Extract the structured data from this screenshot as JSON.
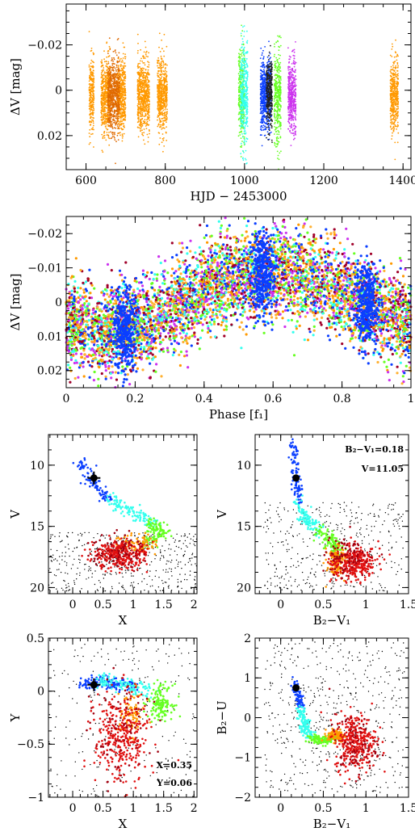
{
  "chart_data": [
    {
      "type": "scatter",
      "xlabel": "HJD − 2453000",
      "ylabel": "ΔV [mag]",
      "xlim": [
        550,
        1420
      ],
      "ylim": [
        0.035,
        -0.038
      ],
      "xticks": [
        600,
        800,
        1000,
        1200,
        1400
      ],
      "xtick_labels": [
        "600",
        "800",
        "1000",
        "1200",
        "1400"
      ],
      "yticks": [
        -0.02,
        0,
        0.02
      ],
      "ytick_labels": [
        "−0.02",
        "0",
        "0.02"
      ],
      "series": [
        {
          "color": "#ff9900",
          "segments": [
            [
              608,
              620
            ],
            [
              638,
              662
            ],
            [
              678,
              700
            ],
            [
              730,
              760
            ],
            [
              780,
              805
            ],
            [
              1368,
              1388
            ]
          ]
        },
        {
          "color": "#e06a00",
          "segments": [
            [
              655,
              685
            ]
          ]
        },
        {
          "color": "#66ff22",
          "segments": [
            [
              985,
              1000
            ],
            [
              1075,
              1092
            ]
          ]
        },
        {
          "color": "#33ffee",
          "segments": [
            [
              990,
              1008
            ]
          ]
        },
        {
          "color": "#0b3fff",
          "segments": [
            [
              1040,
              1068
            ]
          ]
        },
        {
          "color": "#cc33ee",
          "segments": [
            [
              1110,
              1130
            ]
          ]
        },
        {
          "color": "#222222",
          "segments": [
            [
              1055,
              1070
            ]
          ]
        }
      ]
    },
    {
      "type": "scatter",
      "xlabel": "Phase [f₁]",
      "ylabel": "ΔV [mag]",
      "xlim": [
        0,
        1
      ],
      "ylim": [
        0.025,
        -0.025
      ],
      "xticks": [
        0,
        0.2,
        0.4,
        0.6,
        0.8,
        1
      ],
      "xtick_labels": [
        "0",
        "0.2",
        "0.4",
        "0.6",
        "0.8",
        "1"
      ],
      "yticks": [
        -0.02,
        -0.01,
        0,
        0.01,
        0.02
      ],
      "ytick_labels": [
        "−0.02",
        "−0.01",
        "0",
        "0.01",
        "0.02"
      ],
      "mean_curve": [
        [
          0,
          0.006
        ],
        [
          0.1,
          0.009
        ],
        [
          0.2,
          0.007
        ],
        [
          0.3,
          0.003
        ],
        [
          0.4,
          -0.004
        ],
        [
          0.5,
          -0.008
        ],
        [
          0.6,
          -0.009
        ],
        [
          0.7,
          -0.007
        ],
        [
          0.8,
          -0.004
        ],
        [
          0.9,
          0.003
        ],
        [
          1.0,
          0.007
        ]
      ],
      "colors": [
        "#ff9900",
        "#66ff22",
        "#33ffee",
        "#0b3fff",
        "#cc33ee",
        "#a0002a",
        "#ffb030"
      ]
    },
    {
      "type": "scatter",
      "xlabel": "X",
      "ylabel": "V",
      "xlim": [
        -0.4,
        2.05
      ],
      "ylim": [
        20.5,
        7.5
      ],
      "xticks": [
        0,
        0.5,
        1,
        1.5,
        2
      ],
      "xtick_labels": [
        "0",
        "0.5",
        "1",
        "1.5",
        "2"
      ],
      "yticks": [
        10,
        15,
        20
      ],
      "ytick_labels": [
        "10",
        "15",
        "20"
      ],
      "highlight": {
        "x": 0.35,
        "y": 11.05
      }
    },
    {
      "type": "scatter",
      "xlabel": "B₂−V₁",
      "ylabel": "V",
      "xlim": [
        -0.3,
        1.5
      ],
      "ylim": [
        20.5,
        7.5
      ],
      "xticks": [
        0,
        0.5,
        1,
        1.5
      ],
      "xtick_labels": [
        "0",
        "0.5",
        "1",
        "1.5"
      ],
      "yticks": [
        10,
        15,
        20
      ],
      "ytick_labels": [
        "10",
        "15",
        "20"
      ],
      "annotations": [
        "B₂−V₁=0.18",
        "V=11.05"
      ],
      "highlight": {
        "x": 0.18,
        "y": 11.05
      }
    },
    {
      "type": "scatter",
      "xlabel": "X",
      "ylabel": "Y",
      "xlim": [
        -0.4,
        2.05
      ],
      "ylim": [
        -1.0,
        0.5
      ],
      "xticks": [
        0,
        0.5,
        1,
        1.5,
        2
      ],
      "xtick_labels": [
        "0",
        "0.5",
        "1",
        "1.5",
        "2"
      ],
      "yticks": [
        -1,
        -0.5,
        0,
        0.5
      ],
      "ytick_labels": [
        "−1",
        "−0.5",
        "0",
        "0.5"
      ],
      "annotations": [
        "X=0.35",
        "Y=0.06"
      ],
      "highlight": {
        "x": 0.35,
        "y": 0.06
      }
    },
    {
      "type": "scatter",
      "xlabel": "B₂−V₁",
      "ylabel": "B₂−U",
      "xlim": [
        -0.3,
        1.5
      ],
      "ylim": [
        -2.0,
        2.0
      ],
      "xticks": [
        0,
        0.5,
        1,
        1.5
      ],
      "xtick_labels": [
        "0",
        "0.5",
        "1",
        "1.5"
      ],
      "yticks": [
        -2,
        -1,
        0,
        1,
        2
      ],
      "ytick_labels": [
        "−2",
        "−1",
        "0",
        "1",
        "2"
      ],
      "highlight": {
        "x": 0.18,
        "y": 0.75
      }
    }
  ],
  "colors": {
    "blue": "#0b3fff",
    "cyan": "#33ffee",
    "green": "#66ff22",
    "orange": "#ff9900",
    "red": "#e01010",
    "darkred": "#a00010",
    "field": "#000000"
  }
}
